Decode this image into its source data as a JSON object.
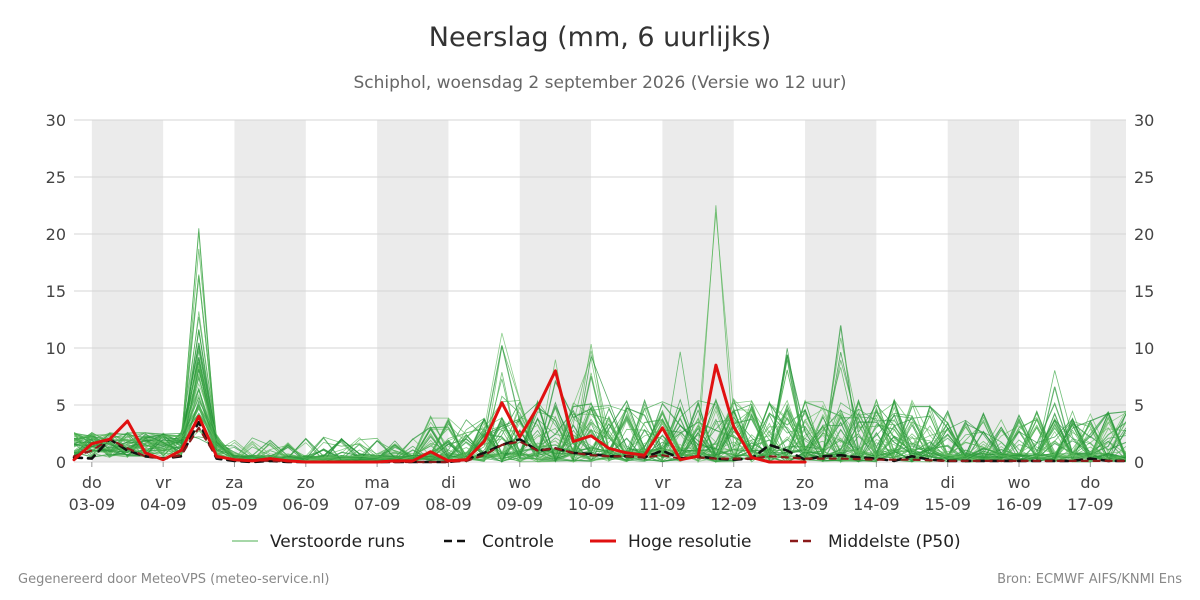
{
  "header": {
    "title": "Neerslag (mm, 6 uurlijks)",
    "subtitle": "Schiphol, woensdag  2 september 2026 (Versie wo 12 uur)"
  },
  "footer": {
    "left": "Gegenereerd door MeteoVPS (meteo-service.nl)",
    "right": "Bron: ECMWF AIFS/KNMI Ens"
  },
  "chart_data": {
    "type": "line",
    "ylim": [
      0,
      30
    ],
    "yticks": [
      0,
      5,
      10,
      15,
      20,
      25,
      30
    ],
    "xlim": [
      -0.25,
      14.5
    ],
    "grid": true,
    "x_unit": "days from 03-09",
    "day_labels": [
      {
        "weekday": "do",
        "date": "03-09"
      },
      {
        "weekday": "vr",
        "date": "04-09"
      },
      {
        "weekday": "za",
        "date": "05-09"
      },
      {
        "weekday": "zo",
        "date": "06-09"
      },
      {
        "weekday": "ma",
        "date": "07-09"
      },
      {
        "weekday": "di",
        "date": "08-09"
      },
      {
        "weekday": "wo",
        "date": "09-09"
      },
      {
        "weekday": "do",
        "date": "10-09"
      },
      {
        "weekday": "vr",
        "date": "11-09"
      },
      {
        "weekday": "za",
        "date": "12-09"
      },
      {
        "weekday": "zo",
        "date": "13-09"
      },
      {
        "weekday": "ma",
        "date": "14-09"
      },
      {
        "weekday": "di",
        "date": "15-09"
      },
      {
        "weekday": "wo",
        "date": "16-09"
      },
      {
        "weekday": "do",
        "date": "17-09"
      }
    ],
    "shaded_bands": [
      [
        0,
        1
      ],
      [
        2,
        3
      ],
      [
        4,
        5
      ],
      [
        6,
        7
      ],
      [
        8,
        9
      ],
      [
        10,
        11
      ],
      [
        12,
        13
      ],
      [
        14,
        14.5
      ]
    ],
    "legend": {
      "position": "bottom",
      "entries": [
        {
          "label": "Verstoorde runs",
          "color": "#4caf50",
          "style": "thin"
        },
        {
          "label": "Controle",
          "color": "#111111",
          "style": "dashed"
        },
        {
          "label": "Hoge resolutie",
          "color": "#e01010",
          "style": "solid"
        },
        {
          "label": "Middelste (P50)",
          "color": "#8b1a1a",
          "style": "dashed"
        }
      ]
    },
    "series": [
      {
        "name": "Hoge resolutie",
        "color": "#e01010",
        "x": [
          -0.25,
          0,
          0.25,
          0.5,
          0.75,
          1,
          1.25,
          1.5,
          1.75,
          2,
          2.25,
          2.5,
          2.75,
          3,
          3.25,
          3.5,
          3.75,
          4,
          4.25,
          4.5,
          4.75,
          5,
          5.25,
          5.5,
          5.75,
          6,
          6.25,
          6.5,
          6.75,
          7,
          7.25,
          7.5,
          7.75,
          8,
          8.25,
          8.5,
          8.75,
          9,
          9.25,
          9.5,
          9.75,
          10
        ],
        "y": [
          0.2,
          1.6,
          2.0,
          3.6,
          0.8,
          0.2,
          1.0,
          4.0,
          0.5,
          0.2,
          0.1,
          0.3,
          0.1,
          0,
          0,
          0,
          0,
          0,
          0.1,
          0.1,
          0.9,
          0.1,
          0.2,
          1.8,
          5.2,
          2.2,
          4.8,
          8.0,
          1.8,
          2.3,
          1.2,
          0.8,
          0.6,
          3.0,
          0.2,
          0.5,
          8.5,
          3.1,
          0.4,
          0,
          0,
          0
        ]
      },
      {
        "name": "Controle",
        "color": "#111111",
        "x": [
          -0.25,
          0,
          0.25,
          0.5,
          0.75,
          1,
          1.25,
          1.5,
          1.75,
          2,
          2.25,
          2.5,
          2.75,
          3,
          3.5,
          4,
          4.5,
          5,
          5.25,
          5.5,
          5.75,
          6,
          6.25,
          6.5,
          6.75,
          7,
          7.25,
          7.5,
          7.75,
          8,
          8.25,
          8.5,
          8.75,
          9,
          9.25,
          9.5,
          9.75,
          10,
          10.25,
          10.5,
          10.75,
          11,
          11.25,
          11.5,
          11.75,
          12,
          12.25,
          12.5,
          13,
          13.5,
          13.75,
          14,
          14.25,
          14.5
        ],
        "y": [
          0.4,
          0.3,
          2.0,
          1.0,
          0.5,
          0.3,
          0.5,
          3.5,
          0.3,
          0.1,
          0,
          0.1,
          0,
          0,
          0,
          0,
          0,
          0,
          0.2,
          0.8,
          1.5,
          2.0,
          1.0,
          1.2,
          0.8,
          0.7,
          0.5,
          0.5,
          0.4,
          1.0,
          0.3,
          0.5,
          0.3,
          0.2,
          0.3,
          1.5,
          1.0,
          0.2,
          0.5,
          0.6,
          0.4,
          0.3,
          0.1,
          0.5,
          0.2,
          0.1,
          0.1,
          0.1,
          0.1,
          0.1,
          0.1,
          0.3,
          0.1,
          0.1
        ]
      },
      {
        "name": "Middelste (P50)",
        "color": "#8b1a1a",
        "x": [
          -0.25,
          0,
          0.25,
          0.5,
          0.75,
          1,
          1.25,
          1.5,
          1.75,
          2,
          2.5,
          3,
          3.5,
          4,
          4.5,
          5,
          5.25,
          5.5,
          5.75,
          6,
          6.25,
          6.5,
          6.75,
          7,
          7.25,
          7.5,
          7.75,
          8,
          8.25,
          8.5,
          8.75,
          9,
          9.25,
          9.5,
          9.75,
          10,
          10.5,
          11,
          11.5,
          12,
          12.5,
          13,
          13.5,
          14,
          14.5
        ],
        "y": [
          0.5,
          1.0,
          2.0,
          1.2,
          0.5,
          0.3,
          0.6,
          3.0,
          0.4,
          0.2,
          0.1,
          0,
          0,
          0,
          0,
          0,
          0.1,
          0.6,
          1.5,
          1.8,
          1.0,
          1.2,
          0.8,
          0.6,
          0.5,
          0.5,
          0.4,
          0.6,
          0.3,
          0.4,
          0.3,
          0.3,
          0.3,
          0.5,
          0.4,
          0.3,
          0.3,
          0.2,
          0.2,
          0.1,
          0.1,
          0.1,
          0.1,
          0.1,
          0.1
        ]
      }
    ]
  }
}
